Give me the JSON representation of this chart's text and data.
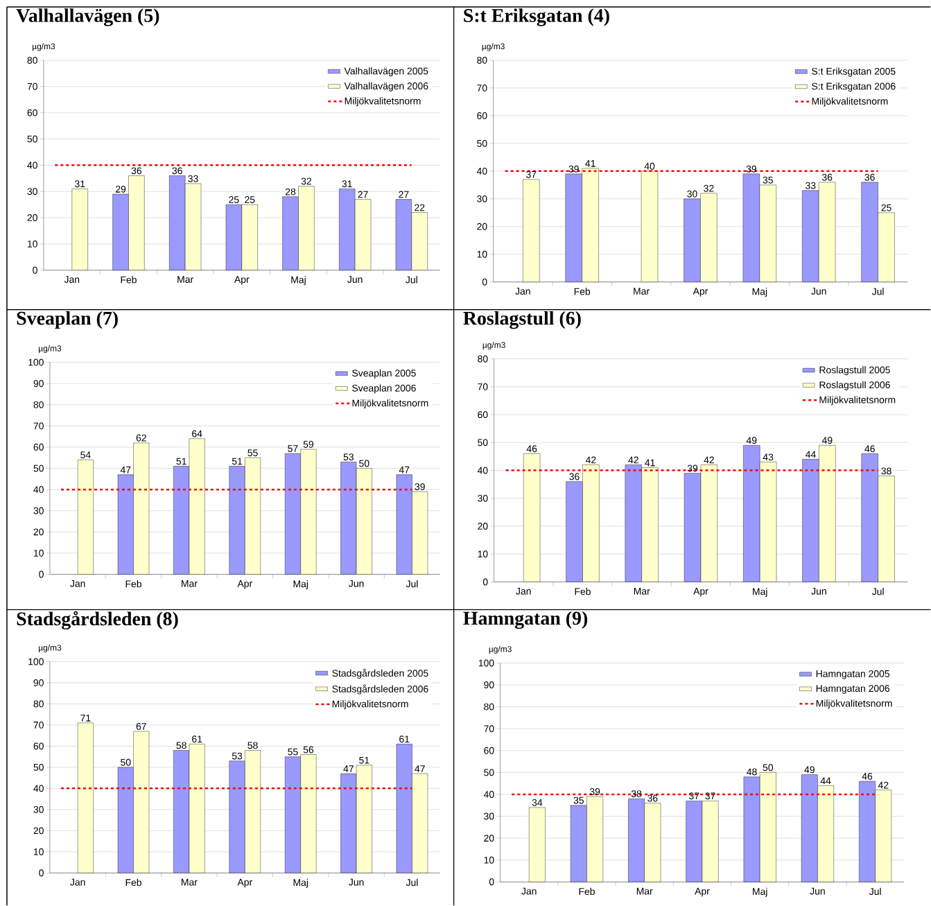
{
  "chart_data": [
    {
      "type": "bar",
      "title": "Valhallavägen (5)",
      "ylabel": "µg/m3",
      "categories": [
        "Jan",
        "Feb",
        "Mar",
        "Apr",
        "Maj",
        "Jun",
        "Jul"
      ],
      "series": [
        {
          "name": "Valhallavägen 2005",
          "color": "#9999ff",
          "values": [
            null,
            29,
            36,
            25,
            28,
            31,
            27
          ]
        },
        {
          "name": "Valhallavägen 2006",
          "color": "#ffffcc",
          "values": [
            31,
            36,
            33,
            25,
            32,
            27,
            22
          ]
        }
      ],
      "ylim": [
        0,
        80
      ],
      "yticks": [
        0,
        10,
        20,
        30,
        40,
        50,
        60,
        70,
        80
      ],
      "grid": "y",
      "legend": "top right",
      "data_labels": true,
      "ref_lines": [
        {
          "axis": "y",
          "value": 40,
          "label": "Miljökvalitetsnorm",
          "color": "#ff0000",
          "line_style": "dashed"
        }
      ]
    },
    {
      "type": "bar",
      "title": "S:t Eriksgatan (4)",
      "ylabel": "µg/m3",
      "categories": [
        "Jan",
        "Feb",
        "Mar",
        "Apr",
        "Maj",
        "Jun",
        "Jul"
      ],
      "series": [
        {
          "name": "S:t Eriksgatan 2005",
          "color": "#9999ff",
          "values": [
            null,
            39,
            null,
            30,
            39,
            33,
            36
          ]
        },
        {
          "name": "S:t Eriksgatan 2006",
          "color": "#ffffcc",
          "values": [
            37,
            41,
            40,
            32,
            35,
            36,
            25
          ]
        }
      ],
      "ylim": [
        0,
        80
      ],
      "yticks": [
        0,
        10,
        20,
        30,
        40,
        50,
        60,
        70,
        80
      ],
      "grid": "y",
      "legend": "top right",
      "data_labels": true,
      "ref_lines": [
        {
          "axis": "y",
          "value": 40,
          "label": "Miljökvalitetsnorm",
          "color": "#ff0000",
          "line_style": "dashed"
        }
      ]
    },
    {
      "type": "bar",
      "title": "Sveaplan (7)",
      "ylabel": "µg/m3",
      "categories": [
        "Jan",
        "Feb",
        "Mar",
        "Apr",
        "Maj",
        "Jun",
        "Jul"
      ],
      "series": [
        {
          "name": "Sveaplan 2005",
          "color": "#9999ff",
          "values": [
            null,
            47,
            51,
            51,
            57,
            53,
            47
          ]
        },
        {
          "name": "Sveaplan 2006",
          "color": "#ffffcc",
          "values": [
            54,
            62,
            64,
            55,
            59,
            50,
            39
          ]
        }
      ],
      "ylim": [
        0,
        100
      ],
      "yticks": [
        0,
        10,
        20,
        30,
        40,
        50,
        60,
        70,
        80,
        90,
        100
      ],
      "grid": "y",
      "legend": "top right",
      "data_labels": true,
      "ref_lines": [
        {
          "axis": "y",
          "value": 40,
          "label": "Miljökvalitetsnorm",
          "color": "#ff0000",
          "line_style": "dashed"
        }
      ]
    },
    {
      "type": "bar",
      "title": "Roslagstull (6)",
      "ylabel": "µg/m3",
      "categories": [
        "Jan",
        "Feb",
        "Mar",
        "Apr",
        "Maj",
        "Jun",
        "Jul"
      ],
      "series": [
        {
          "name": "Roslagstull 2005",
          "color": "#9999ff",
          "values": [
            null,
            36,
            42,
            39,
            49,
            44,
            46
          ]
        },
        {
          "name": "Roslagstull 2006",
          "color": "#ffffcc",
          "values": [
            46,
            42,
            41,
            42,
            43,
            49,
            38
          ]
        }
      ],
      "ylim": [
        0,
        80
      ],
      "yticks": [
        0,
        10,
        20,
        30,
        40,
        50,
        60,
        70,
        80
      ],
      "grid": "y",
      "legend": "top right",
      "data_labels": true,
      "ref_lines": [
        {
          "axis": "y",
          "value": 40,
          "label": "Miljökvalitetsnorm",
          "color": "#ff0000",
          "line_style": "dashed"
        }
      ]
    },
    {
      "type": "bar",
      "title": "Stadsgårdsleden (8)",
      "ylabel": "µg/m3",
      "categories": [
        "Jan",
        "Feb",
        "Mar",
        "Apr",
        "Maj",
        "Jun",
        "Jul"
      ],
      "series": [
        {
          "name": "Stadsgårdsleden 2005",
          "color": "#9999ff",
          "values": [
            null,
            50,
            58,
            53,
            55,
            47,
            61
          ]
        },
        {
          "name": "Stadsgårdsleden 2006",
          "color": "#ffffcc",
          "values": [
            71,
            67,
            61,
            58,
            56,
            51,
            47
          ]
        }
      ],
      "ylim": [
        0,
        100
      ],
      "yticks": [
        0,
        10,
        20,
        30,
        40,
        50,
        60,
        70,
        80,
        90,
        100
      ],
      "grid": "y",
      "legend": "top right",
      "data_labels": true,
      "ref_lines": [
        {
          "axis": "y",
          "value": 40,
          "label": "Miljökvalitetsnorm",
          "color": "#ff0000",
          "line_style": "dashed"
        }
      ]
    },
    {
      "type": "bar",
      "title": "Hamngatan (9)",
      "ylabel": "µg/m3",
      "categories": [
        "Jan",
        "Feb",
        "Mar",
        "Apr",
        "Maj",
        "Jun",
        "Jul"
      ],
      "series": [
        {
          "name": "Hamngatan 2005",
          "color": "#9999ff",
          "values": [
            null,
            35,
            38,
            37,
            48,
            49,
            46
          ]
        },
        {
          "name": "Hamngatan 2006",
          "color": "#ffffcc",
          "values": [
            34,
            39,
            36,
            37,
            50,
            44,
            42
          ]
        }
      ],
      "ylim": [
        0,
        100
      ],
      "yticks": [
        0,
        10,
        20,
        30,
        40,
        50,
        60,
        70,
        80,
        90,
        100
      ],
      "grid": "y",
      "legend": "top right",
      "data_labels": true,
      "ref_lines": [
        {
          "axis": "y",
          "value": 40,
          "label": "Miljökvalitetsnorm",
          "color": "#ff0000",
          "line_style": "dashed"
        }
      ]
    }
  ]
}
